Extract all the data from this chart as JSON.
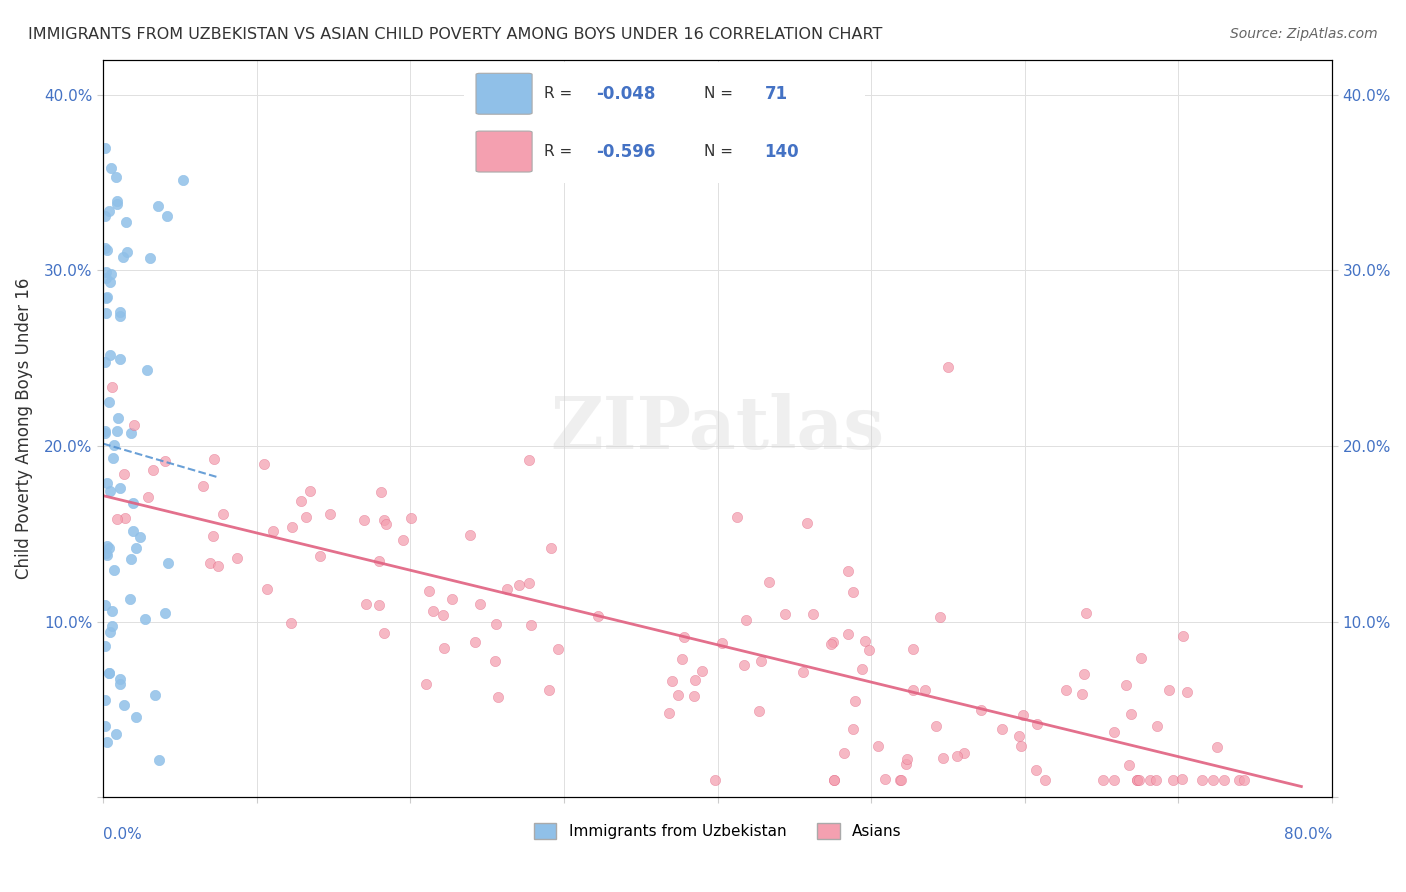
{
  "title": "IMMIGRANTS FROM UZBEKISTAN VS ASIAN CHILD POVERTY AMONG BOYS UNDER 16 CORRELATION CHART",
  "source": "Source: ZipAtlas.com",
  "ylabel": "Child Poverty Among Boys Under 16",
  "legend1_label": "Immigrants from Uzbekistan",
  "legend2_label": "Asians",
  "R1": -0.048,
  "N1": 71,
  "R2": -0.596,
  "N2": 140,
  "blue_color": "#90C0E8",
  "pink_color": "#F4A0B0",
  "blue_line_color": "#5090D0",
  "pink_line_color": "#E06080",
  "watermark": "ZIPatlas",
  "xlim": [
    0,
    0.8
  ],
  "ylim": [
    0,
    0.42
  ],
  "ytick_vals": [
    0.0,
    0.1,
    0.2,
    0.3,
    0.4
  ],
  "ytick_labels": [
    "",
    "10.0%",
    "20.0%",
    "30.0%",
    "40.0%"
  ]
}
